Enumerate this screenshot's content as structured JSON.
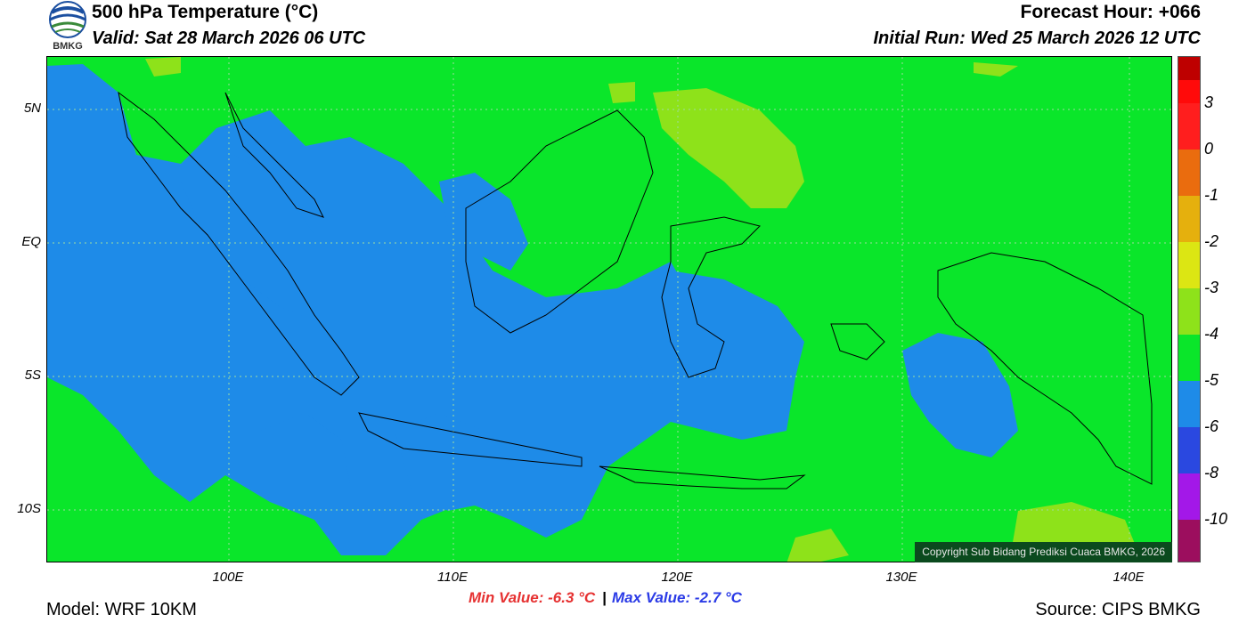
{
  "header": {
    "title": "500 hPa Temperature (°C)",
    "valid": "Valid: Sat 28 March 2026 06 UTC",
    "forecast_hour": "Forecast Hour: +066",
    "initial_run": "Initial Run: Wed 25 March 2026 12 UTC",
    "logo_text": "BMKG"
  },
  "map": {
    "lat_labels": [
      "5N",
      "EQ",
      "5S",
      "10S"
    ],
    "lon_labels": [
      "100E",
      "110E",
      "120E",
      "130E",
      "140E"
    ],
    "copyright": "Copyright Sub Bidang Prediksi Cuaca BMKG, 2026",
    "region": "Indonesia",
    "colors": {
      "dominant_field": "#0ae62a",
      "cool_field": "#1e8be8",
      "warm_field": "#8ee21a",
      "coastline": "#000000"
    }
  },
  "stats": {
    "min_value": "Min Value: -6.3 °C",
    "separator": "|",
    "max_value": "Max Value: -2.7 °C"
  },
  "colorbar": {
    "ticks": [
      "3",
      "0",
      "-1",
      "-2",
      "-3",
      "-4",
      "-5",
      "-6",
      "-8",
      "-10"
    ],
    "colors": [
      "#be0000",
      "#ff0a0a",
      "#ff1e1e",
      "#ea6c0e",
      "#e5b00d",
      "#dce613",
      "#8ee21a",
      "#0ae62a",
      "#1e8be8",
      "#2a48e0",
      "#a318e8",
      "#9c0e5e"
    ]
  },
  "footer": {
    "model": "Model: WRF 10KM",
    "source": "Source: CIPS BMKG"
  }
}
